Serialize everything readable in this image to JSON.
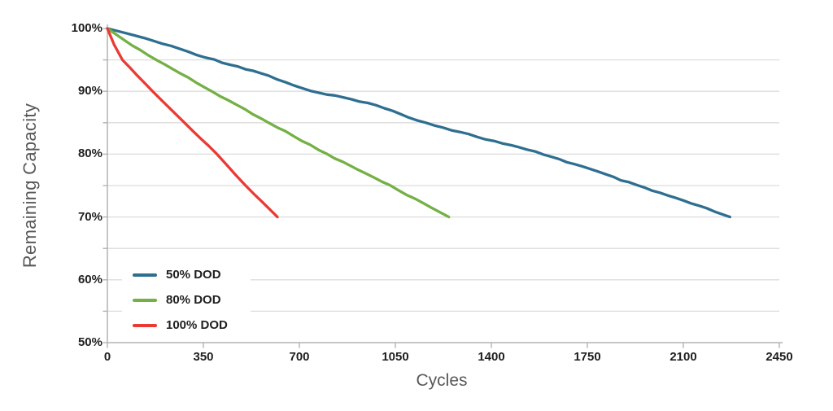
{
  "chart_data": {
    "type": "line",
    "title": "",
    "xlabel": "Cycles",
    "ylabel": "Remaining Capacity",
    "xlim": [
      0,
      2450
    ],
    "ylim_percent": [
      50,
      100
    ],
    "x_ticks": [
      0,
      350,
      700,
      1050,
      1400,
      1750,
      2100,
      2450
    ],
    "x_tick_labels": [
      "0",
      "350",
      "700",
      "1050",
      "1400",
      "1750",
      "2100",
      "2450"
    ],
    "y_ticks": [
      100,
      90,
      80,
      70,
      60,
      50
    ],
    "y_tick_labels": [
      "100%",
      "90%",
      "80%",
      "70%",
      "60%",
      "50%"
    ],
    "grid": {
      "horizontal_step_percent": 5,
      "color": "#dcdcdc",
      "vertical": false
    },
    "legend": {
      "position": "inside-lower-left",
      "entries": [
        "50% DOD",
        "80% DOD",
        "100% DOD"
      ]
    },
    "series": [
      {
        "name": "50% DOD",
        "color": "#2e6f90",
        "points": [
          [
            0,
            100
          ],
          [
            100,
            98.9
          ],
          [
            200,
            97.6
          ],
          [
            390,
            95
          ],
          [
            560,
            92.9
          ],
          [
            740,
            90
          ],
          [
            950,
            88.2
          ],
          [
            1160,
            85
          ],
          [
            1380,
            82.4
          ],
          [
            1590,
            80
          ],
          [
            1760,
            77.6
          ],
          [
            1930,
            75
          ],
          [
            2100,
            72.6
          ],
          [
            2270,
            70
          ]
        ]
      },
      {
        "name": "80% DOD",
        "color": "#74b045",
        "points": [
          [
            0,
            100
          ],
          [
            90,
            97.3
          ],
          [
            180,
            95
          ],
          [
            380,
            90
          ],
          [
            590,
            85
          ],
          [
            800,
            80
          ],
          [
            1030,
            75
          ],
          [
            1245,
            70
          ]
        ]
      },
      {
        "name": "100% DOD",
        "color": "#ea3a33",
        "points": [
          [
            0,
            100
          ],
          [
            25,
            97.4
          ],
          [
            55,
            95
          ],
          [
            165,
            90
          ],
          [
            281,
            85
          ],
          [
            400,
            80
          ],
          [
            504,
            75
          ],
          [
            620,
            70
          ]
        ]
      }
    ],
    "axis_color": "#b3b3b3",
    "tick_label_color": "#1f1f1f",
    "axis_title_color": "#595959",
    "endpoint_capacity_percent": 70
  }
}
